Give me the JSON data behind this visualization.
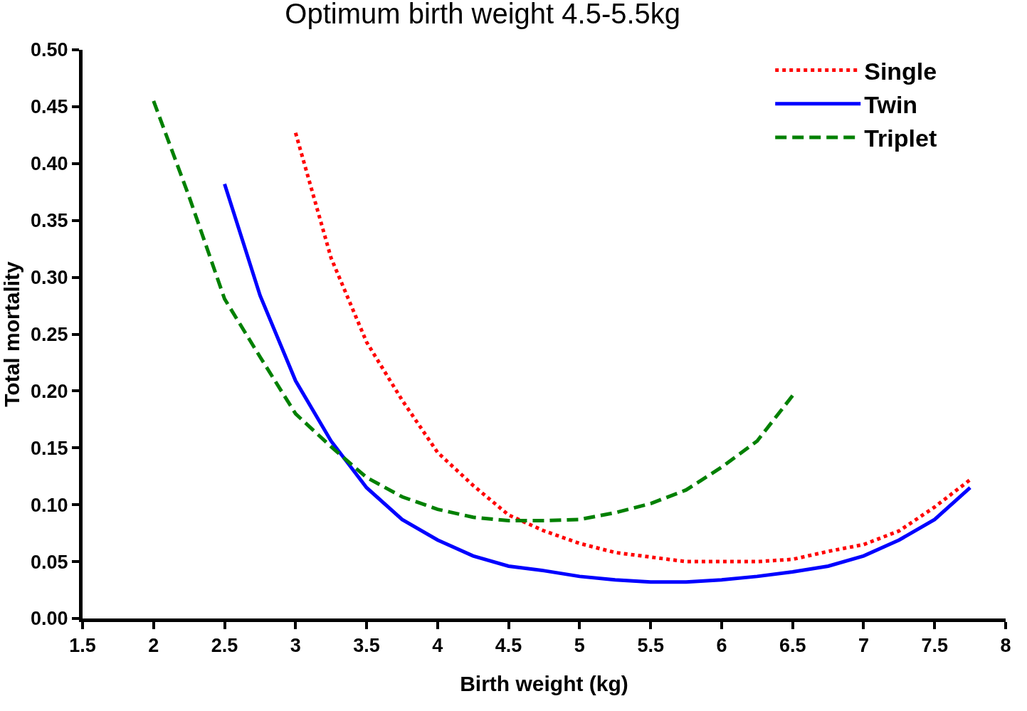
{
  "chart_data": {
    "type": "line",
    "title": "Optimum birth weight 4.5-5.5kg",
    "xlabel": "Birth weight (kg)",
    "ylabel": "Total mortality",
    "xlim": [
      1.5,
      8
    ],
    "xticks": [
      1.5,
      2,
      2.5,
      3,
      3.5,
      4,
      4.5,
      5,
      5.5,
      6,
      6.5,
      7,
      7.5,
      8
    ],
    "ylim": [
      0,
      0.5
    ],
    "yticks": [
      {
        "value": 0,
        "label": "0.00"
      },
      {
        "value": 0.05,
        "label": "0.05"
      },
      {
        "value": 0.1,
        "label": "0.10"
      },
      {
        "value": 0.15,
        "label": "0.15"
      },
      {
        "value": 0.2,
        "label": "0.20"
      },
      {
        "value": 0.25,
        "label": "0.25"
      },
      {
        "value": 0.3,
        "label": "0.30"
      },
      {
        "value": 0.35,
        "label": "0.35"
      },
      {
        "value": 0.4,
        "label": "0.40"
      },
      {
        "value": 0.45,
        "label": "0.45"
      },
      {
        "value": 0.5,
        "label": "0.50"
      }
    ],
    "legend": "top right",
    "marker": "none",
    "series": [
      {
        "name": "Single",
        "color": "#ff0000",
        "line_style": "dotted",
        "x": [
          3.0,
          3.25,
          3.5,
          3.75,
          4.0,
          4.25,
          4.5,
          4.75,
          5.0,
          5.25,
          5.5,
          5.75,
          6.0,
          6.25,
          6.5,
          6.75,
          7.0,
          7.25,
          7.5,
          7.75
        ],
        "values": [
          0.427,
          0.317,
          0.243,
          0.192,
          0.146,
          0.117,
          0.091,
          0.077,
          0.066,
          0.058,
          0.054,
          0.05,
          0.05,
          0.05,
          0.052,
          0.059,
          0.065,
          0.077,
          0.098,
          0.122
        ]
      },
      {
        "name": "Twin",
        "color": "#0000ff",
        "line_style": "solid",
        "x": [
          2.5,
          2.75,
          3.0,
          3.25,
          3.5,
          3.75,
          4.0,
          4.25,
          4.5,
          4.75,
          5.0,
          5.25,
          5.5,
          5.75,
          6.0,
          6.25,
          6.5,
          6.75,
          7.0,
          7.25,
          7.5,
          7.75
        ],
        "values": [
          0.382,
          0.284,
          0.209,
          0.156,
          0.115,
          0.087,
          0.069,
          0.055,
          0.046,
          0.042,
          0.037,
          0.034,
          0.032,
          0.032,
          0.034,
          0.037,
          0.041,
          0.046,
          0.055,
          0.069,
          0.087,
          0.115
        ]
      },
      {
        "name": "Triplet",
        "color": "#008000",
        "line_style": "dashed",
        "x": [
          2.0,
          2.25,
          2.5,
          2.75,
          3.0,
          3.25,
          3.5,
          3.75,
          4.0,
          4.25,
          4.5,
          4.75,
          5.0,
          5.25,
          5.5,
          5.75,
          6.0,
          6.25,
          6.5
        ],
        "values": [
          0.455,
          0.371,
          0.281,
          0.23,
          0.18,
          0.151,
          0.124,
          0.107,
          0.096,
          0.089,
          0.086,
          0.086,
          0.087,
          0.093,
          0.101,
          0.113,
          0.133,
          0.156,
          0.196
        ]
      }
    ]
  }
}
